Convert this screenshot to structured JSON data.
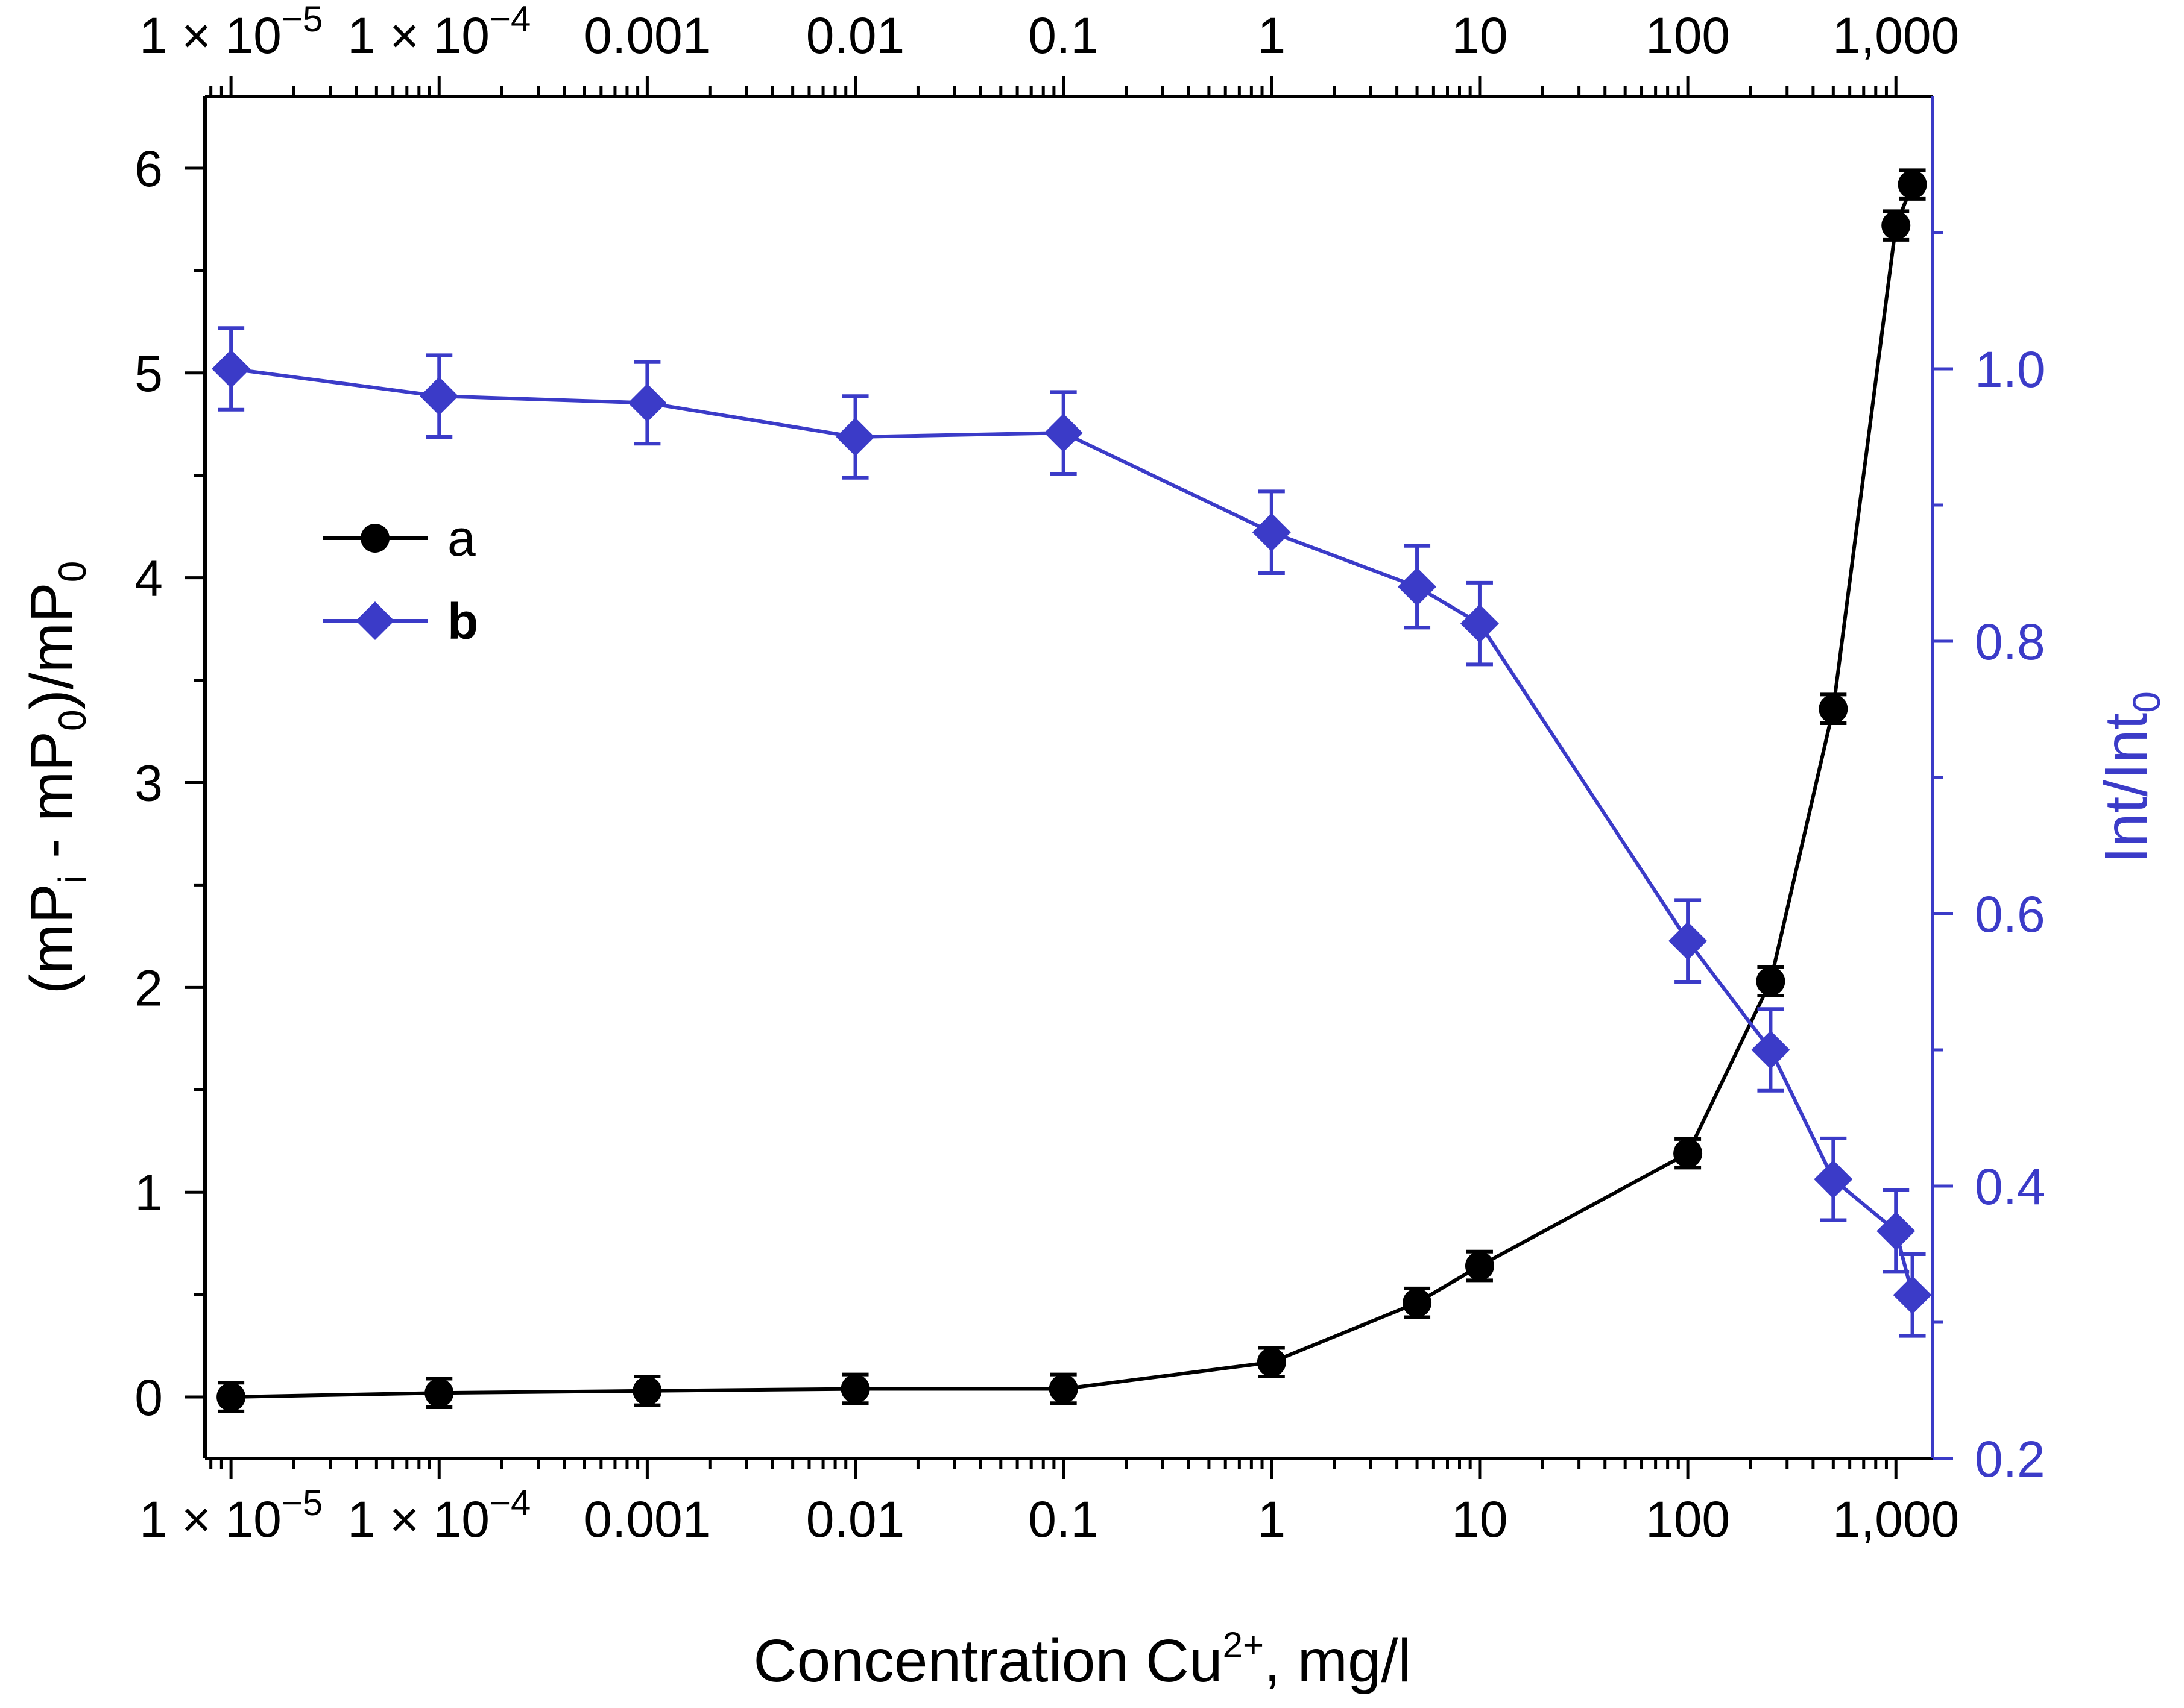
{
  "chart_data": {
    "type": "line",
    "x_scale": "log",
    "xlabel": "Concentration Cu",
    "xlabel_sup": "2+",
    "xlabel_unit": ",  mg/l",
    "xlim": [
      7.5e-06,
      1500
    ],
    "x_tick_labels": [
      {
        "value": 1e-05,
        "label": "1 × 10",
        "exp": "−5"
      },
      {
        "value": 0.0001,
        "label": "1 × 10",
        "exp": "−4"
      },
      {
        "value": 0.001,
        "label": "0.001",
        "exp": ""
      },
      {
        "value": 0.01,
        "label": "0.01",
        "exp": ""
      },
      {
        "value": 0.1,
        "label": "0.1",
        "exp": ""
      },
      {
        "value": 1,
        "label": "1",
        "exp": ""
      },
      {
        "value": 10,
        "label": "10",
        "exp": ""
      },
      {
        "value": 100,
        "label": "100",
        "exp": ""
      },
      {
        "value": 1000,
        "label": "1,000",
        "exp": ""
      }
    ],
    "y_left": {
      "label_parts": [
        "(mP",
        "i",
        " - mP",
        "0",
        ")/mP",
        "0"
      ],
      "ylim": [
        -0.3,
        6.35
      ],
      "ticks": [
        0,
        1,
        2,
        3,
        4,
        5,
        6
      ],
      "tick_labels": [
        "0",
        "1",
        "2",
        "3",
        "4",
        "5",
        "6"
      ],
      "color": "#000000"
    },
    "y_right": {
      "label_parts": [
        "Int/Int",
        "0"
      ],
      "ylim": [
        0.2,
        1.2
      ],
      "ticks": [
        0.2,
        0.4,
        0.6,
        0.8,
        1.0
      ],
      "tick_labels": [
        "0.2",
        "0.4",
        "0.6",
        "0.8",
        "1.0"
      ],
      "color": "#3b3bc8"
    },
    "series": [
      {
        "name": "a",
        "axis": "left",
        "marker": "circle",
        "color": "#000000",
        "x": [
          1e-05,
          0.0001,
          0.001,
          0.01,
          0.1,
          1,
          5,
          10,
          100,
          250,
          500,
          1000,
          1200
        ],
        "y": [
          0.0,
          0.02,
          0.03,
          0.04,
          0.04,
          0.17,
          0.46,
          0.64,
          1.19,
          2.03,
          3.36,
          5.72,
          5.92
        ],
        "err": [
          0.07,
          0.07,
          0.07,
          0.07,
          0.07,
          0.07,
          0.07,
          0.07,
          0.07,
          0.07,
          0.07,
          0.07,
          0.07
        ]
      },
      {
        "name": "b",
        "axis": "right",
        "marker": "diamond",
        "color": "#3b3bc8",
        "x": [
          1e-05,
          0.0001,
          0.001,
          0.01,
          0.1,
          1,
          5,
          10,
          100,
          250,
          500,
          1000,
          1200
        ],
        "y": [
          1.0,
          0.98,
          0.975,
          0.95,
          0.953,
          0.88,
          0.84,
          0.813,
          0.58,
          0.5,
          0.405,
          0.367,
          0.32
        ],
        "err": [
          0.03,
          0.03,
          0.03,
          0.03,
          0.03,
          0.03,
          0.03,
          0.03,
          0.03,
          0.03,
          0.03,
          0.03,
          0.03
        ]
      }
    ],
    "legend": {
      "position": "upper-left",
      "entries": [
        "a",
        "b"
      ]
    }
  }
}
